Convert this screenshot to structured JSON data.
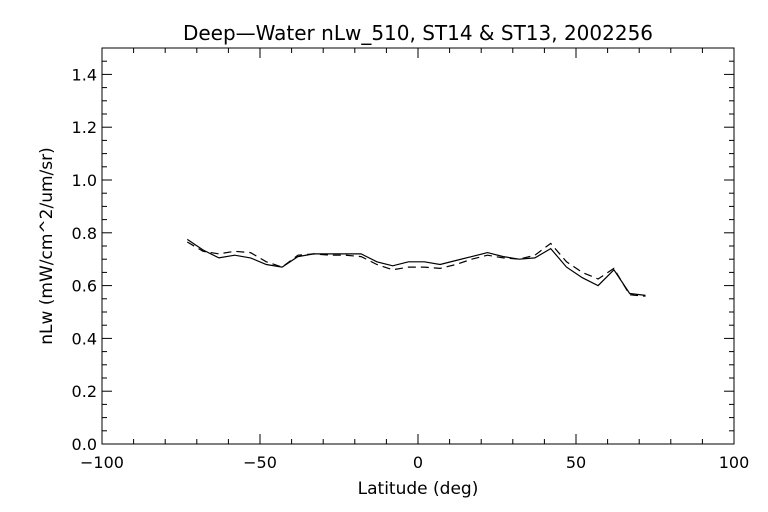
{
  "chart_data": {
    "type": "line",
    "title": "Deep—Water nLw_510, ST14 & ST13, 2002256",
    "xlabel": "Latitude (deg)",
    "ylabel": "nLw (mW/cm^2/um/sr)",
    "xlim": [
      -100,
      100
    ],
    "ylim": [
      0.0,
      1.5
    ],
    "xticks": [
      -100,
      -50,
      0,
      50,
      100
    ],
    "xtick_labels": [
      "−100",
      "−50",
      "0",
      "50",
      "100"
    ],
    "yticks": [
      0.0,
      0.2,
      0.4,
      0.6,
      0.8,
      1.0,
      1.2,
      1.4
    ],
    "ytick_labels": [
      "0.0",
      "0.2",
      "0.4",
      "0.6",
      "0.8",
      "1.0",
      "1.2",
      "1.4"
    ],
    "grid": false,
    "series": [
      {
        "style": "solid",
        "x": [
          -73,
          -68,
          -63,
          -58,
          -53,
          -48,
          -43,
          -38,
          -33,
          -28,
          -23,
          -18,
          -13,
          -8,
          -3,
          2,
          7,
          12,
          17,
          22,
          27,
          32,
          37,
          42,
          47,
          52,
          57,
          62,
          67,
          72
        ],
        "y": [
          0.775,
          0.735,
          0.705,
          0.715,
          0.705,
          0.68,
          0.67,
          0.71,
          0.72,
          0.72,
          0.72,
          0.72,
          0.69,
          0.675,
          0.69,
          0.69,
          0.68,
          0.695,
          0.71,
          0.725,
          0.71,
          0.7,
          0.705,
          0.74,
          0.67,
          0.63,
          0.6,
          0.66,
          0.57,
          0.563
        ]
      },
      {
        "style": "dashed",
        "x": [
          -73,
          -68,
          -63,
          -58,
          -53,
          -48,
          -43,
          -38,
          -33,
          -28,
          -23,
          -18,
          -13,
          -8,
          -3,
          2,
          7,
          12,
          17,
          22,
          27,
          32,
          37,
          42,
          47,
          52,
          57,
          62,
          67,
          72
        ],
        "y": [
          0.765,
          0.73,
          0.72,
          0.73,
          0.725,
          0.69,
          0.67,
          0.715,
          0.72,
          0.715,
          0.715,
          0.71,
          0.68,
          0.66,
          0.67,
          0.67,
          0.665,
          0.68,
          0.7,
          0.715,
          0.705,
          0.7,
          0.715,
          0.76,
          0.69,
          0.65,
          0.625,
          0.665,
          0.565,
          0.56
        ]
      }
    ]
  }
}
